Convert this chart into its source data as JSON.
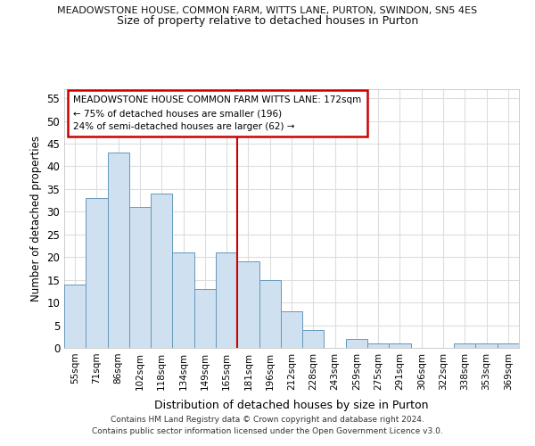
{
  "title1": "MEADOWSTONE HOUSE, COMMON FARM, WITTS LANE, PURTON, SWINDON, SN5 4ES",
  "title2": "Size of property relative to detached houses in Purton",
  "xlabel": "Distribution of detached houses by size in Purton",
  "ylabel": "Number of detached properties",
  "categories": [
    "55sqm",
    "71sqm",
    "86sqm",
    "102sqm",
    "118sqm",
    "134sqm",
    "149sqm",
    "165sqm",
    "181sqm",
    "196sqm",
    "212sqm",
    "228sqm",
    "243sqm",
    "259sqm",
    "275sqm",
    "291sqm",
    "306sqm",
    "322sqm",
    "338sqm",
    "353sqm",
    "369sqm"
  ],
  "values": [
    14,
    33,
    43,
    31,
    34,
    21,
    13,
    21,
    19,
    15,
    8,
    4,
    0,
    2,
    1,
    1,
    0,
    0,
    1,
    1,
    1
  ],
  "bar_color": "#cfe0f0",
  "bar_edge_color": "#6699bb",
  "vline_x": 8,
  "vline_color": "#cc0000",
  "annotation_line1": "MEADOWSTONE HOUSE COMMON FARM WITTS LANE: 172sqm",
  "annotation_line2": "← 75% of detached houses are smaller (196)",
  "annotation_line3": "24% of semi-detached houses are larger (62) →",
  "annotation_box_color": "#cc0000",
  "ylim": [
    0,
    57
  ],
  "yticks": [
    0,
    5,
    10,
    15,
    20,
    25,
    30,
    35,
    40,
    45,
    50,
    55
  ],
  "background_color": "#ffffff",
  "grid_color": "#dddddd",
  "footer1": "Contains HM Land Registry data © Crown copyright and database right 2024.",
  "footer2": "Contains public sector information licensed under the Open Government Licence v3.0."
}
